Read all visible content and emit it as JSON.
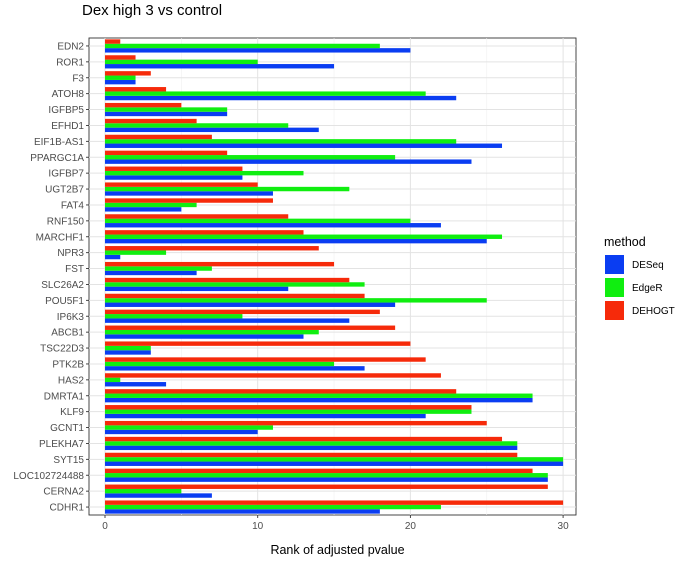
{
  "chart_data": {
    "type": "bar",
    "orientation": "horizontal",
    "title": "Dex high 3 vs control",
    "xlabel": "Rank of adjusted pvalue",
    "ylabel": "",
    "xlim": [
      0,
      30.5
    ],
    "xticks": [
      0,
      10,
      20,
      30
    ],
    "grid": true,
    "legend_title": "method",
    "legend_position": "right",
    "categories": [
      "EDN2",
      "ROR1",
      "F3",
      "ATOH8",
      "IGFBP5",
      "EFHD1",
      "EIF1B-AS1",
      "PPARGC1A",
      "IGFBP7",
      "UGT2B7",
      "FAT4",
      "RNF150",
      "MARCHF1",
      "NPR3",
      "FST",
      "SLC26A2",
      "POU5F1",
      "IP6K3",
      "ABCB1",
      "TSC22D3",
      "PTK2B",
      "HAS2",
      "DMRTA1",
      "KLF9",
      "GCNT1",
      "PLEKHA7",
      "SYT15",
      "LOC102724488",
      "CERNA2",
      "CDHR1"
    ],
    "series": [
      {
        "name": "DESeq",
        "color": "#0a3df2",
        "values": [
          20,
          15,
          2,
          23,
          8,
          14,
          26,
          24,
          9,
          11,
          5,
          22,
          25,
          1,
          6,
          12,
          19,
          16,
          13,
          3,
          17,
          4,
          28,
          21,
          10,
          27,
          30,
          29,
          7,
          18
        ]
      },
      {
        "name": "EdgeR",
        "color": "#10ee10",
        "values": [
          18,
          10,
          2,
          21,
          8,
          12,
          23,
          19,
          13,
          16,
          6,
          20,
          26,
          4,
          7,
          17,
          25,
          9,
          14,
          3,
          15,
          1,
          28,
          24,
          11,
          27,
          30,
          29,
          5,
          22
        ]
      },
      {
        "name": "DEHOGT",
        "color": "#f62a0a",
        "values": [
          1,
          2,
          3,
          4,
          5,
          6,
          7,
          8,
          9,
          10,
          11,
          12,
          13,
          14,
          15,
          16,
          17,
          18,
          19,
          20,
          21,
          22,
          23,
          24,
          25,
          26,
          27,
          28,
          29,
          30
        ]
      }
    ]
  }
}
